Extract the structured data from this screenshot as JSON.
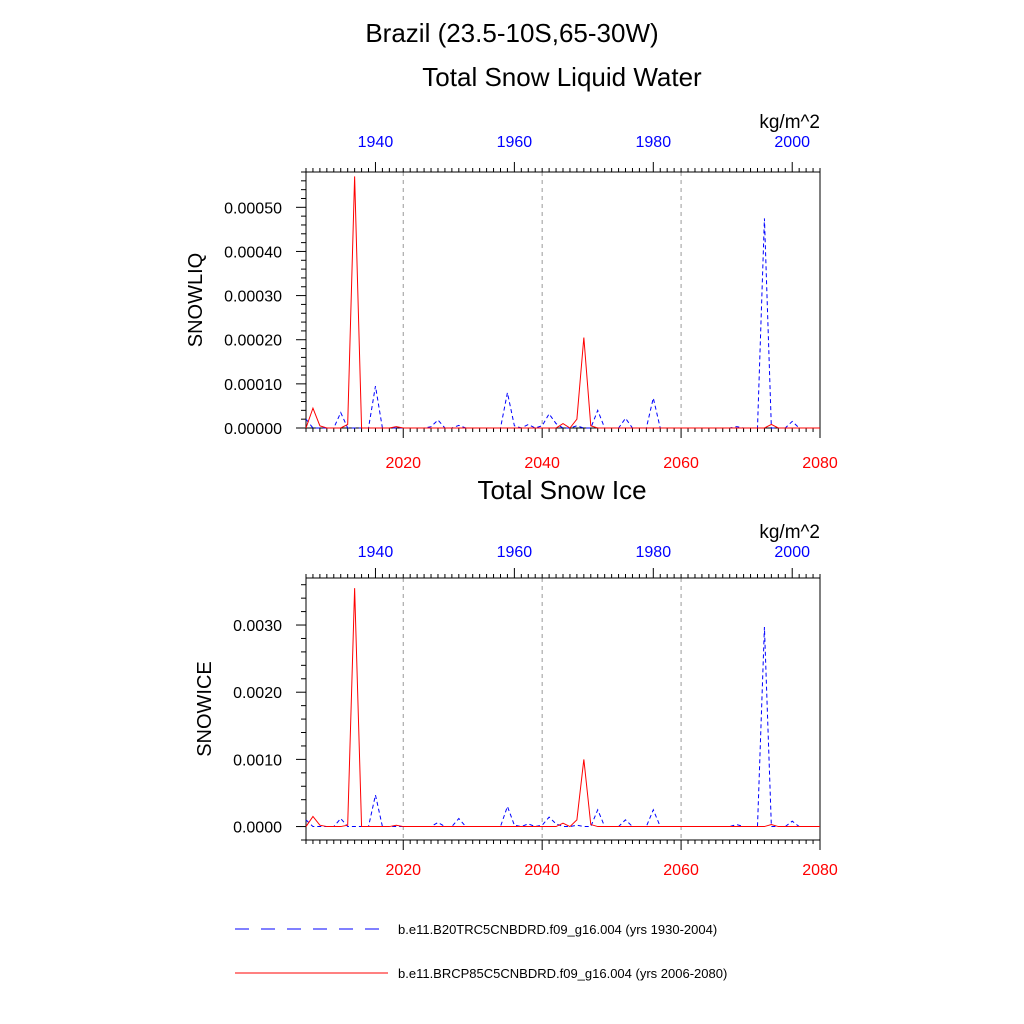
{
  "figure": {
    "title": "Brazil (23.5-10S,65-30W)",
    "colors": {
      "historical": "#0000ff",
      "future": "#ff0000",
      "grid": "#999999",
      "axis": "#000000"
    }
  },
  "legend": {
    "items": [
      {
        "label": "b.e11.B20TRC5CNBDRD.f09_g16.004 (yrs 1930-2004)",
        "style": "dashed",
        "color": "#0000ff"
      },
      {
        "label": "b.e11.BRCP85C5CNBDRD.f09_g16.004 (yrs 2006-2080)",
        "style": "solid",
        "color": "#ff0000"
      }
    ]
  },
  "chart_data": [
    {
      "type": "line",
      "title": "Total Snow Liquid Water",
      "units": "kg/m^2",
      "ylabel": "SNOWLIQ",
      "ylim": [
        0,
        0.00058
      ],
      "yticks": [
        0,
        0.0001,
        0.0002,
        0.0003,
        0.0004,
        0.0005
      ],
      "ytick_labels": [
        "0.00000",
        "0.00010",
        "0.00020",
        "0.00030",
        "0.00040",
        "0.00050"
      ],
      "top_axis": {
        "label_color": "#0000ff",
        "xlim": [
          1930,
          2004
        ],
        "ticks": [
          1940,
          1960,
          1980,
          2000
        ],
        "tick_labels": [
          "1940",
          "1960",
          "1980",
          "2000"
        ]
      },
      "bottom_axis": {
        "label_color": "#ff0000",
        "xlim": [
          2006,
          2080
        ],
        "ticks": [
          2020,
          2040,
          2060,
          2080
        ],
        "tick_labels": [
          "2020",
          "2040",
          "2060",
          "2080"
        ]
      },
      "grid_x": [
        2020,
        2040,
        2060
      ],
      "series": [
        {
          "name": "b.e11.B20TRC5CNBDRD.f09_g16.004 (yrs 1930-2004)",
          "axis": "top",
          "style": "dashed",
          "color": "#0000ff",
          "x0": 1930,
          "values": [
            2e-05,
            0,
            0,
            0,
            0,
            3.5e-05,
            0,
            0,
            0,
            0,
            9.5e-05,
            0,
            0,
            0,
            0,
            0,
            0,
            0,
            3e-06,
            1.8e-05,
            0,
            0,
            6e-06,
            0,
            0,
            0,
            0,
            0,
            0,
            8e-05,
            5e-06,
            0,
            8e-06,
            0,
            5e-06,
            3.2e-05,
            1e-05,
            0,
            0,
            5e-06,
            0,
            0,
            4e-05,
            0,
            0,
            0,
            2.2e-05,
            0,
            0,
            0,
            6.8e-05,
            0,
            0,
            0,
            0,
            0,
            0,
            0,
            0,
            0,
            0,
            0,
            3e-06,
            0,
            0,
            0,
            0.000475,
            0,
            0,
            0,
            1.5e-05,
            0,
            0,
            0,
            0
          ]
        },
        {
          "name": "b.e11.BRCP85C5CNBDRD.f09_g16.004 (yrs 2006-2080)",
          "axis": "bottom",
          "style": "solid",
          "color": "#ff0000",
          "x0": 2006,
          "values": [
            0,
            4.5e-05,
            5e-06,
            0,
            0,
            0,
            8e-06,
            0.00057,
            0,
            0,
            0,
            0,
            0,
            3e-06,
            0,
            0,
            0,
            0,
            0,
            0,
            0,
            0,
            0,
            0,
            0,
            0,
            0,
            0,
            0,
            0,
            0,
            0,
            0,
            0,
            0,
            0,
            0,
            1e-05,
            0,
            2e-05,
            0.000205,
            5e-06,
            0,
            0,
            0,
            0,
            0,
            0,
            0,
            0,
            0,
            0,
            0,
            0,
            0,
            0,
            0,
            0,
            0,
            0,
            0,
            0,
            0,
            0,
            0,
            0,
            0,
            8e-06,
            0,
            0,
            0,
            0,
            0,
            0,
            0
          ]
        }
      ]
    },
    {
      "type": "line",
      "title": "Total Snow Ice",
      "units": "kg/m^2",
      "ylabel": "SNOWICE",
      "ylim": [
        -0.0002,
        0.0037
      ],
      "yticks": [
        0,
        0.001,
        0.002,
        0.003
      ],
      "ytick_labels": [
        "0.0000",
        "0.0010",
        "0.0020",
        "0.0030"
      ],
      "top_axis": {
        "label_color": "#0000ff",
        "xlim": [
          1930,
          2004
        ],
        "ticks": [
          1940,
          1960,
          1980,
          2000
        ],
        "tick_labels": [
          "1940",
          "1960",
          "1980",
          "2000"
        ]
      },
      "bottom_axis": {
        "label_color": "#ff0000",
        "xlim": [
          2006,
          2080
        ],
        "ticks": [
          2020,
          2040,
          2060,
          2080
        ],
        "tick_labels": [
          "2020",
          "2040",
          "2060",
          "2080"
        ]
      },
      "grid_x": [
        2020,
        2040,
        2060
      ],
      "series": [
        {
          "name": "b.e11.B20TRC5CNBDRD.f09_g16.004 (yrs 1930-2004)",
          "axis": "top",
          "style": "dashed",
          "color": "#0000ff",
          "x0": 1930,
          "values": [
            0.0001,
            0,
            0,
            0,
            0,
            0.00012,
            0,
            0,
            0,
            0,
            0.00047,
            0,
            0,
            0,
            0,
            0,
            0,
            0,
            0,
            6e-05,
            0,
            0,
            0.00012,
            0,
            0,
            0,
            0,
            0,
            0,
            0.0003,
            2e-05,
            0,
            4e-05,
            0,
            2e-05,
            0.00014,
            4e-05,
            0,
            0,
            2e-05,
            0,
            0,
            0.00025,
            0,
            0,
            0,
            0.0001,
            0,
            0,
            0,
            0.00025,
            0,
            0,
            0,
            0,
            0,
            0,
            0,
            0,
            0,
            0,
            0,
            3e-05,
            0,
            0,
            0,
            0.00297,
            0,
            0,
            0,
            8e-05,
            0,
            0,
            0,
            0
          ]
        },
        {
          "name": "b.e11.BRCP85C5CNBDRD.f09_g16.004 (yrs 2006-2080)",
          "axis": "bottom",
          "style": "solid",
          "color": "#ff0000",
          "x0": 2006,
          "values": [
            0,
            0.00015,
            2e-05,
            0,
            0,
            0,
            2e-05,
            0.00355,
            0,
            0,
            0,
            0,
            0,
            2e-05,
            0,
            0,
            0,
            0,
            0,
            0,
            0,
            0,
            0,
            0,
            0,
            0,
            0,
            0,
            0,
            0,
            0,
            0,
            0,
            0,
            0,
            0,
            0,
            5e-05,
            0,
            0.0001,
            0.001,
            3e-05,
            0,
            0,
            0,
            0,
            0,
            0,
            0,
            0,
            0,
            0,
            0,
            0,
            0,
            0,
            0,
            0,
            0,
            0,
            0,
            0,
            0,
            0,
            0,
            0,
            0,
            3e-05,
            0,
            0,
            0,
            0,
            0,
            0,
            0
          ]
        }
      ]
    }
  ]
}
